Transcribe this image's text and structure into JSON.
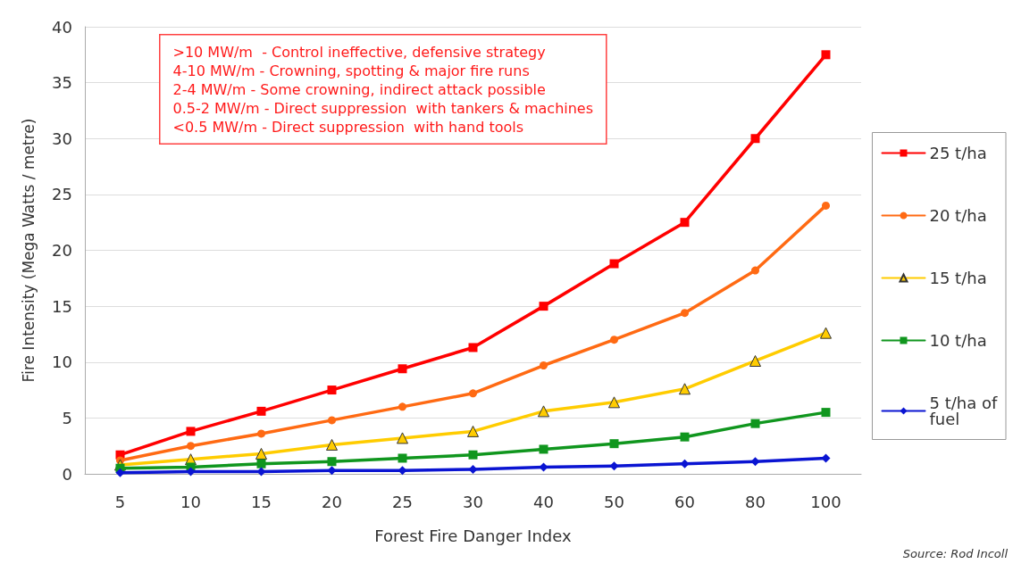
{
  "chart_data": {
    "type": "line",
    "xlabel": "Forest Fire Danger Index",
    "ylabel": "Fire Intensity (Mega Watts / metre)",
    "categories": [
      "5",
      "10",
      "15",
      "20",
      "25",
      "30",
      "40",
      "50",
      "60",
      "80",
      "100"
    ],
    "series": [
      {
        "name": "25 t/ha",
        "color": "#ff0000",
        "marker": "square",
        "values": [
          1.7,
          3.8,
          5.6,
          7.5,
          9.4,
          11.3,
          15.0,
          18.8,
          22.5,
          30.0,
          37.5
        ]
      },
      {
        "name": "20 t/ha",
        "color": "#ff6a13",
        "marker": "circle",
        "values": [
          1.2,
          2.5,
          3.6,
          4.8,
          6.0,
          7.2,
          9.7,
          12.0,
          14.4,
          18.2,
          24.0
        ]
      },
      {
        "name": "15 t/ha",
        "color": "#ffcc00",
        "marker": "triangle",
        "values": [
          0.8,
          1.3,
          1.8,
          2.6,
          3.2,
          3.8,
          5.6,
          6.4,
          7.6,
          10.1,
          12.6
        ]
      },
      {
        "name": "10 t/ha",
        "color": "#10961e",
        "marker": "square",
        "values": [
          0.5,
          0.6,
          0.9,
          1.1,
          1.4,
          1.7,
          2.2,
          2.7,
          3.3,
          4.5,
          5.5
        ]
      },
      {
        "name": "5 t/ha of fuel",
        "color": "#0a14d2",
        "marker": "diamond",
        "values": [
          0.1,
          0.2,
          0.2,
          0.3,
          0.3,
          0.4,
          0.6,
          0.7,
          0.9,
          1.1,
          1.4
        ]
      }
    ],
    "ylim": [
      0,
      40
    ],
    "yticks": [
      0,
      5,
      10,
      15,
      20,
      25,
      30,
      35,
      40
    ],
    "grid": "y",
    "legend": "right",
    "line_style": "solid",
    "annotations": [
      ">10 MW/m  - Control ineffective, defensive strategy",
      "4-10 MW/m - Crowning, spotting & major fire runs",
      "2-4 MW/m - Some crowning, indirect attack possible",
      "0.5-2 MW/m - Direct suppression  with tankers & machines",
      "<0.5 MW/m - Direct suppression  with hand tools",
      "Source: Rod Incoll"
    ]
  }
}
